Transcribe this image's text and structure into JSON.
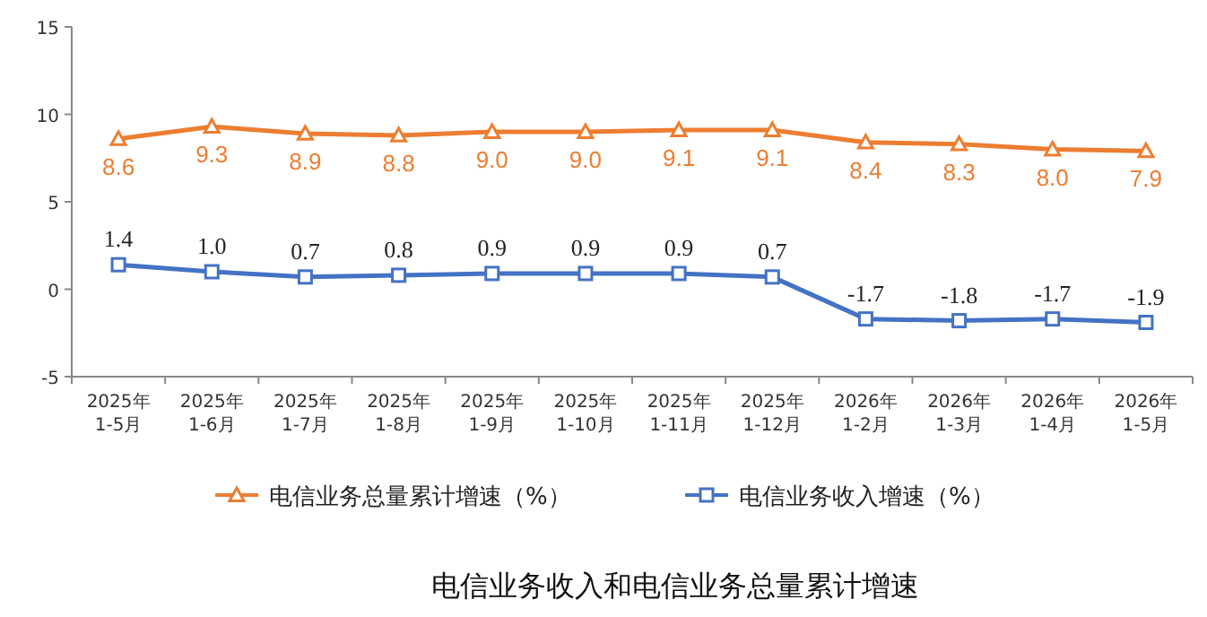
{
  "chart_data": {
    "type": "line",
    "title": "电信业务收入和电信业务总量累计增速",
    "categories": [
      "2025年\n1-5月",
      "2025年\n1-6月",
      "2025年\n1-7月",
      "2025年\n1-8月",
      "2025年\n1-9月",
      "2025年\n1-10月",
      "2025年\n1-11月",
      "2025年\n1-12月",
      "2026年\n1-2月",
      "2026年\n1-3月",
      "2026年\n1-4月",
      "2026年\n1-5月"
    ],
    "series": [
      {
        "name": "电信业务总量累计增速（%）",
        "color": "#ed7d31",
        "marker": "triangle",
        "values": [
          8.6,
          9.3,
          8.9,
          8.8,
          9.0,
          9.0,
          9.1,
          9.1,
          8.4,
          8.3,
          8.0,
          7.9
        ],
        "value_labels": [
          "8.6",
          "9.3",
          "8.9",
          "8.8",
          "9.0",
          "9.0",
          "9.1",
          "9.1",
          "8.4",
          "8.3",
          "8.0",
          "7.9"
        ]
      },
      {
        "name": "电信业务收入增速（%）",
        "color": "#4472c4",
        "marker": "square",
        "values": [
          1.4,
          1.0,
          0.7,
          0.8,
          0.9,
          0.9,
          0.9,
          0.7,
          -1.7,
          -1.8,
          -1.7,
          -1.9
        ],
        "value_labels": [
          "1.4",
          "1.0",
          "0.7",
          "0.8",
          "0.9",
          "0.9",
          "0.9",
          "0.7",
          "-1.7",
          "-1.8",
          "-1.7",
          "-1.9"
        ]
      }
    ],
    "ylim": [
      -5,
      15
    ],
    "yticks": [
      -5,
      0,
      5,
      10,
      15
    ],
    "legend": "bottom",
    "grid": false
  }
}
